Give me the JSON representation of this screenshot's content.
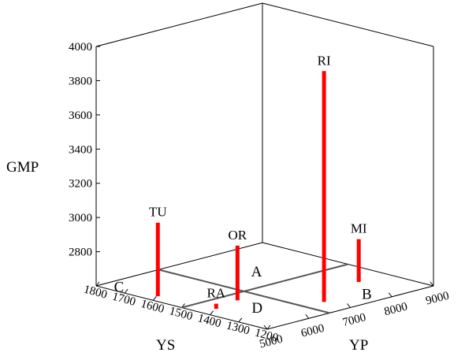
{
  "chart_data": {
    "type": "3d-bar",
    "xlabel": "YP",
    "ylabel": "YS",
    "zlabel": "GMP",
    "xlim": [
      5000,
      9000
    ],
    "ylim": [
      1200,
      1800
    ],
    "zlim": [
      2600,
      4000
    ],
    "x_ticks": [
      "5000",
      "6000",
      "7000",
      "8000",
      "9000"
    ],
    "y_ticks": [
      "1800",
      "1700",
      "1600",
      "1500",
      "1400",
      "1300",
      "1200"
    ],
    "z_ticks": [
      "2800",
      "3000",
      "3200",
      "3400",
      "3600",
      "3800",
      "4000"
    ],
    "points": [
      {
        "label": "RI",
        "yp": 6950,
        "ys": 1285,
        "gmp": 3950
      },
      {
        "label": "TU",
        "yp": 5250,
        "ys": 1620,
        "gmp": 3030
      },
      {
        "label": "OR",
        "yp": 6000,
        "ys": 1450,
        "gmp": 2920
      },
      {
        "label": "MI",
        "yp": 8300,
        "ys": 1360,
        "gmp": 2850
      },
      {
        "label": "RA",
        "yp": 5350,
        "ys": 1430,
        "gmp": 2630
      }
    ],
    "reference_lines": [
      {
        "from": {
          "yp": 5000,
          "ys": 1500
        },
        "to": {
          "yp": 9000,
          "ys": 1500
        }
      },
      {
        "from": {
          "yp": 6500,
          "ys": 1800
        },
        "to": {
          "yp": 6500,
          "ys": 1200
        }
      }
    ],
    "quadrant_labels": [
      {
        "label": "A",
        "yp": 7350,
        "ys": 1580
      },
      {
        "label": "B",
        "yp": 7600,
        "ys": 1230
      },
      {
        "label": "C",
        "yp": 5000,
        "ys": 1720
      },
      {
        "label": "D",
        "yp": 5650,
        "ys": 1330
      }
    ],
    "bar_color": "#ff0000",
    "grid": false
  }
}
